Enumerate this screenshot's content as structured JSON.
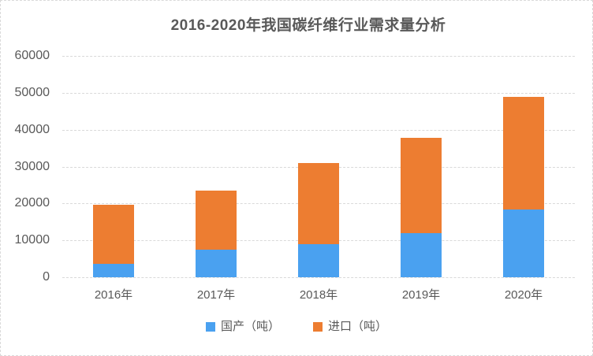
{
  "chart_data": {
    "type": "bar",
    "stacked": true,
    "title": "2016-2020年我国碳纤维行业需求量分析",
    "categories": [
      "2016年",
      "2017年",
      "2018年",
      "2019年",
      "2020年"
    ],
    "series": [
      {
        "name": "国产（吨）",
        "color": "#4AA1F0",
        "values": [
          3600,
          7400,
          9000,
          12000,
          18450
        ]
      },
      {
        "name": "进口（吨）",
        "color": "#ED7D31",
        "values": [
          15963,
          16087,
          22000,
          25840,
          30401
        ]
      }
    ],
    "xlabel": "",
    "ylabel": "",
    "ylim": [
      0,
      60000
    ],
    "yticks": [
      0,
      10000,
      20000,
      30000,
      40000,
      50000,
      60000
    ],
    "grid": true,
    "gridline_style": "dashed",
    "legend_position": "bottom"
  },
  "colors": {
    "background": "#FFFFFF",
    "frame_border": "#D9D9D9",
    "gridline": "#D9D9D9",
    "text": "#595959",
    "title_text": "#595959",
    "series_domestic": "#4AA1F0",
    "series_import": "#ED7D31"
  }
}
